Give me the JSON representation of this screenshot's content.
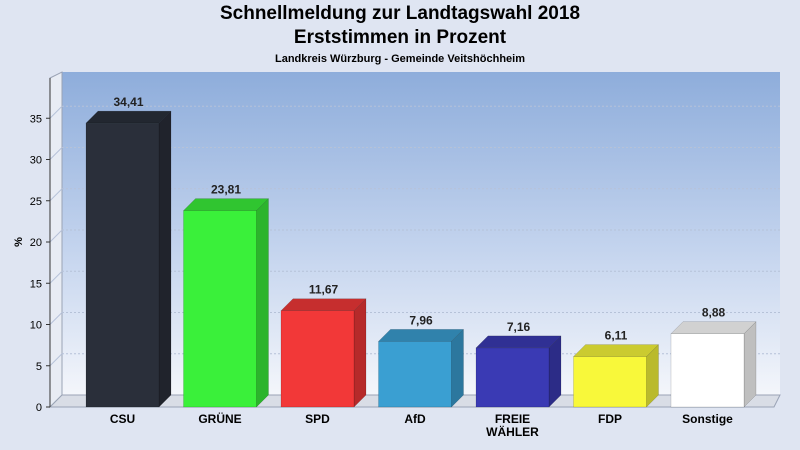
{
  "chart_data": {
    "type": "bar",
    "title": "Schnellmeldung zur Landtagswahl 2018",
    "subtitle": "Erststimmen in Prozent",
    "subtitle2": "Landkreis Würzburg - Gemeinde Veitshöchheim",
    "xlabel": "",
    "ylabel": "%",
    "ylim": [
      0,
      35
    ],
    "yticks": [
      0,
      5,
      10,
      15,
      20,
      25,
      30,
      35
    ],
    "grid": true,
    "categories": [
      "CSU",
      "GRÜNE",
      "SPD",
      "AfD",
      "FREIE WÄHLER",
      "FDP",
      "Sonstige"
    ],
    "category_lines": [
      [
        "CSU"
      ],
      [
        "GRÜNE"
      ],
      [
        "SPD"
      ],
      [
        "AfD"
      ],
      [
        "FREIE",
        "WÄHLER"
      ],
      [
        "FDP"
      ],
      [
        "Sonstige"
      ]
    ],
    "values": [
      34.41,
      23.81,
      11.67,
      7.96,
      7.16,
      6.11,
      8.88
    ],
    "value_labels": [
      "34,41",
      "23,81",
      "11,67",
      "7,96",
      "7,16",
      "6,11",
      "8,88"
    ],
    "colors": [
      "#2a2f3a",
      "#3af03a",
      "#f23838",
      "#3a9fd2",
      "#3a3ab4",
      "#f8f83a",
      "#ffffff"
    ]
  }
}
